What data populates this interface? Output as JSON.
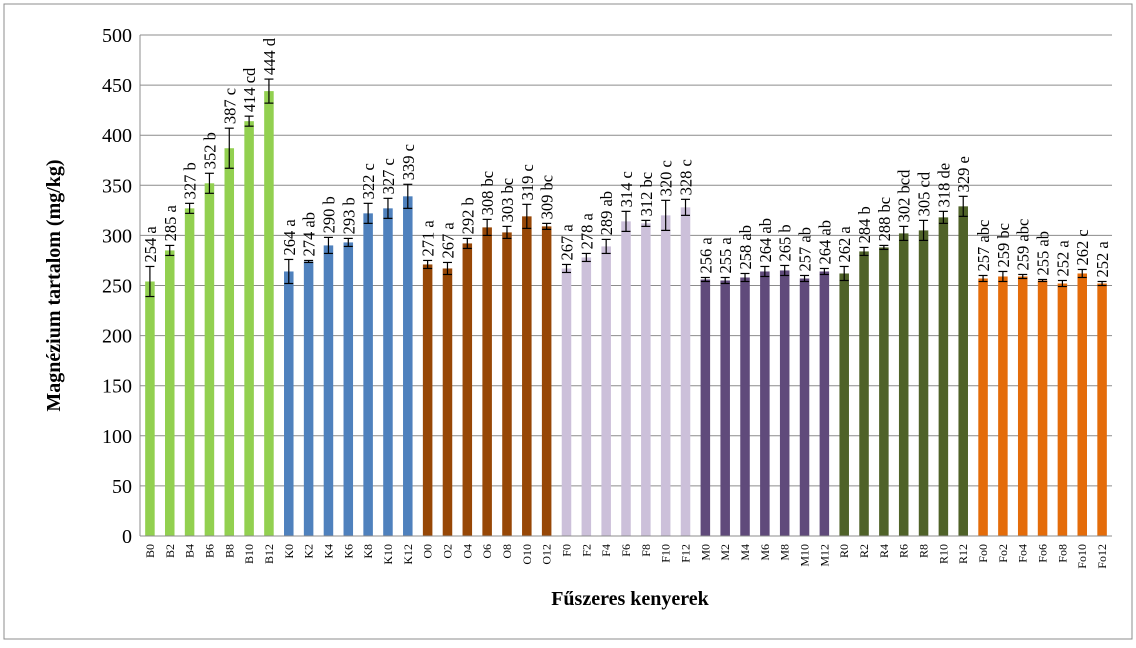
{
  "chart_data": {
    "type": "bar",
    "title": "",
    "xlabel": "Fűszeres kenyerek",
    "ylabel": "Magnézium tartalom (mg/kg)",
    "ylim": [
      0,
      500
    ],
    "yticks": [
      0,
      50,
      100,
      150,
      200,
      250,
      300,
      350,
      400,
      450,
      500
    ],
    "grid": true,
    "legend": "none",
    "groups": [
      {
        "color": "#92D050",
        "categories": [
          "B0",
          "B2",
          "B4",
          "B6",
          "B8",
          "B10",
          "B12"
        ],
        "values": [
          254,
          285,
          327,
          352,
          387,
          414,
          444
        ],
        "errors": [
          15,
          5,
          5,
          10,
          20,
          5,
          12
        ],
        "labels": [
          "254 a",
          "285 a",
          "327 b",
          "352 b",
          "387 c",
          "414 cd",
          "444 d"
        ]
      },
      {
        "color": "#4F81BD",
        "categories": [
          "K0",
          "K2",
          "K4",
          "K6",
          "K8",
          "K10",
          "K12"
        ],
        "values": [
          264,
          274,
          290,
          293,
          322,
          327,
          339
        ],
        "errors": [
          12,
          1,
          8,
          4,
          10,
          10,
          12
        ],
        "labels": [
          "264 a",
          "274 ab",
          "290 b",
          "293 b",
          "322 c",
          "327 c",
          "339 c"
        ]
      },
      {
        "color": "#974706",
        "categories": [
          "O0",
          "O2",
          "O4",
          "O6",
          "O8",
          "O10",
          "O12"
        ],
        "values": [
          271,
          267,
          292,
          308,
          303,
          319,
          309
        ],
        "errors": [
          4,
          6,
          5,
          8,
          6,
          12,
          3
        ],
        "labels": [
          "271 a",
          "267 a",
          "292 b",
          "308 bc",
          "303 bc",
          "319 c",
          "309 bc"
        ]
      },
      {
        "color": "#CCC0DA",
        "categories": [
          "F0",
          "F2",
          "F4",
          "F6",
          "F8",
          "F10",
          "F12"
        ],
        "values": [
          267,
          278,
          289,
          314,
          312,
          320,
          328
        ],
        "errors": [
          4,
          4,
          7,
          10,
          3,
          15,
          8
        ],
        "labels": [
          "267 a",
          "278 a",
          "289 ab",
          "314 c",
          "312 bc",
          "320 c",
          "328 c"
        ]
      },
      {
        "color": "#604A7B",
        "categories": [
          "M0",
          "M2",
          "M4",
          "M6",
          "M8",
          "M10",
          "M12"
        ],
        "values": [
          256,
          255,
          258,
          264,
          265,
          257,
          264
        ],
        "errors": [
          2,
          3,
          4,
          5,
          5,
          3,
          3
        ],
        "labels": [
          "256 a",
          "255 a",
          "258 ab",
          "264 ab",
          "265 b",
          "257 ab",
          "264 ab"
        ]
      },
      {
        "color": "#4F6228",
        "categories": [
          "R0",
          "R2",
          "R4",
          "R6",
          "R8",
          "R10",
          "R12"
        ],
        "values": [
          262,
          284,
          288,
          302,
          305,
          318,
          329
        ],
        "errors": [
          7,
          4,
          2,
          7,
          10,
          6,
          10
        ],
        "labels": [
          "262 a",
          "284 b",
          "288 bc",
          "302 bcd",
          "305 cd",
          "318 de",
          "329 e"
        ]
      },
      {
        "color": "#E46C0A",
        "categories": [
          "Fo0",
          "Fo2",
          "Fo4",
          "Fo6",
          "Fo8",
          "Fo10",
          "Fo12"
        ],
        "values": [
          257,
          259,
          259,
          255,
          252,
          262,
          252
        ],
        "errors": [
          3,
          5,
          2,
          1,
          3,
          4,
          2
        ],
        "labels": [
          "257 abc",
          "259 bc",
          "259 abc",
          "255 ab",
          "252 a",
          "262 c",
          "252 a"
        ]
      }
    ]
  }
}
